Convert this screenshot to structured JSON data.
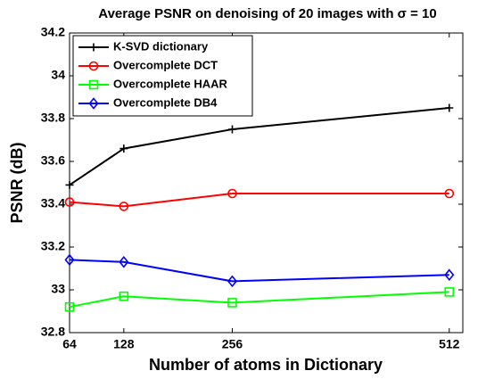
{
  "chart_data": {
    "type": "line",
    "title": "Average PSNR on denoising of 20 images with σ = 10",
    "x_label": "Number of atoms in Dictionary",
    "y_label": "PSNR (dB)",
    "x": [
      64,
      128,
      256,
      512
    ],
    "xlim": [
      64,
      528
    ],
    "xticks": [
      64,
      128,
      256,
      512
    ],
    "ylim": [
      32.8,
      34.2
    ],
    "yticks": [
      32.8,
      33,
      33.2,
      33.4,
      33.6,
      33.8,
      34,
      34.2
    ],
    "legend": "upper left",
    "grid": false,
    "series": [
      {
        "name": "K-SVD dictionary",
        "color": "#000000",
        "marker": "plus",
        "values": [
          33.49,
          33.66,
          33.75,
          33.85
        ]
      },
      {
        "name": "Overcomplete DCT",
        "color": "#ff0000",
        "marker": "circle",
        "values": [
          33.41,
          33.39,
          33.45,
          33.45
        ]
      },
      {
        "name": "Overcomplete HAAR",
        "color": "#00ff00",
        "marker": "square",
        "values": [
          32.92,
          32.97,
          32.94,
          32.99
        ]
      },
      {
        "name": "Overcomplete DB4",
        "color": "#0000ff",
        "marker": "diamond",
        "values": [
          33.14,
          33.13,
          33.04,
          33.07
        ]
      }
    ]
  }
}
